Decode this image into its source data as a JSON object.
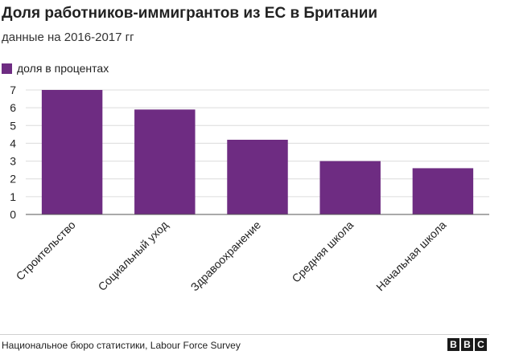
{
  "title": "Доля работников-иммигрантов из ЕС в Британии",
  "subtitle": "данные на 2016-2017 гг",
  "legend": {
    "label": "доля в процентах"
  },
  "colors": {
    "bar": "#6e2c82",
    "grid": "#dcdcdc",
    "axis": "#555555",
    "text": "#222222"
  },
  "source": "Национальное бюро статистики, Labour Force Survey",
  "logo": {
    "letters": [
      "B",
      "B",
      "C"
    ]
  },
  "chart_data": {
    "type": "bar",
    "categories": [
      "Строительство",
      "Социальный уход",
      "Здравоохранение",
      "Средняя школа",
      "Начальная школа"
    ],
    "values": [
      7.0,
      5.9,
      4.2,
      3.0,
      2.6
    ],
    "yticks": [
      0,
      1,
      2,
      3,
      4,
      5,
      6,
      7
    ],
    "ylim": [
      0,
      7
    ],
    "grid": true,
    "legend_position": "top-left"
  }
}
